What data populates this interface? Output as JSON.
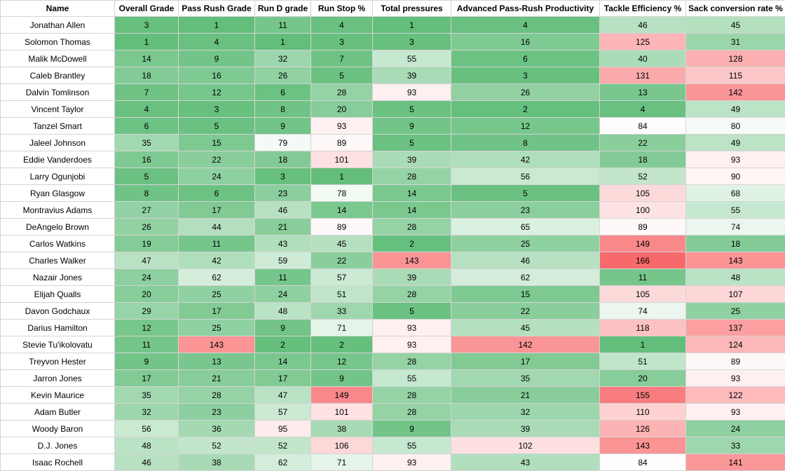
{
  "columns": [
    "Name",
    "Overall Grade",
    "Pass Rush Grade",
    "Run D grade",
    "Run Stop %",
    "Total pressures",
    "Advanced Pass-Rush Productivity",
    "Tackle Efficiency %",
    "Sack conversion rate %"
  ],
  "column_count_max": 166,
  "color_scale": {
    "good": "#63be7b",
    "mid": "#ffffff",
    "bad": "#f8696b",
    "midpoint": 85
  },
  "rows": [
    {
      "name": "Jonathan Allen",
      "values": [
        3,
        1,
        11,
        4,
        1,
        4,
        46,
        45
      ]
    },
    {
      "name": "Solomon Thomas",
      "values": [
        1,
        4,
        1,
        3,
        3,
        16,
        125,
        31
      ]
    },
    {
      "name": "Malik McDowell",
      "values": [
        14,
        9,
        32,
        7,
        55,
        6,
        40,
        128
      ]
    },
    {
      "name": "Caleb Brantley",
      "values": [
        18,
        16,
        26,
        5,
        39,
        3,
        131,
        115
      ]
    },
    {
      "name": "Dalvin Tomlinson",
      "values": [
        7,
        12,
        6,
        28,
        93,
        26,
        13,
        142
      ]
    },
    {
      "name": "Vincent Taylor",
      "values": [
        4,
        3,
        8,
        20,
        5,
        2,
        4,
        49
      ]
    },
    {
      "name": "Tanzel Smart",
      "values": [
        6,
        5,
        9,
        93,
        9,
        12,
        84,
        80
      ]
    },
    {
      "name": "Jaleel Johnson",
      "values": [
        35,
        15,
        79,
        89,
        5,
        8,
        22,
        49
      ]
    },
    {
      "name": "Eddie Vanderdoes",
      "values": [
        16,
        22,
        18,
        101,
        39,
        42,
        18,
        93
      ]
    },
    {
      "name": "Larry Ogunjobi",
      "values": [
        5,
        24,
        3,
        1,
        28,
        56,
        52,
        90
      ]
    },
    {
      "name": "Ryan Glasgow",
      "values": [
        8,
        6,
        23,
        78,
        14,
        5,
        105,
        68
      ]
    },
    {
      "name": "Montravius Adams",
      "values": [
        27,
        17,
        46,
        14,
        14,
        23,
        100,
        55
      ]
    },
    {
      "name": "DeAngelo Brown",
      "values": [
        26,
        44,
        21,
        89,
        28,
        65,
        89,
        74
      ]
    },
    {
      "name": "Carlos Watkins",
      "values": [
        19,
        11,
        43,
        45,
        2,
        25,
        149,
        18
      ]
    },
    {
      "name": "Charles Walker",
      "values": [
        47,
        42,
        59,
        22,
        143,
        46,
        166,
        143
      ]
    },
    {
      "name": "Nazair Jones",
      "values": [
        24,
        62,
        11,
        57,
        39,
        62,
        11,
        48
      ]
    },
    {
      "name": "Elijah Qualls",
      "values": [
        20,
        25,
        24,
        51,
        28,
        15,
        105,
        107
      ]
    },
    {
      "name": "Davon Godchaux",
      "values": [
        29,
        17,
        48,
        33,
        5,
        22,
        74,
        25
      ]
    },
    {
      "name": "Darius Hamilton",
      "values": [
        12,
        25,
        9,
        71,
        93,
        45,
        118,
        137
      ]
    },
    {
      "name": "Stevie Tu'ikolovatu",
      "values": [
        11,
        143,
        2,
        2,
        93,
        142,
        1,
        124
      ]
    },
    {
      "name": "Treyvon Hester",
      "values": [
        9,
        13,
        14,
        12,
        28,
        17,
        51,
        89
      ]
    },
    {
      "name": "Jarron Jones",
      "values": [
        17,
        21,
        17,
        9,
        55,
        35,
        20,
        93
      ]
    },
    {
      "name": "Kevin Maurice",
      "values": [
        35,
        28,
        47,
        149,
        28,
        21,
        155,
        122
      ]
    },
    {
      "name": "Adam Butler",
      "values": [
        32,
        23,
        57,
        101,
        28,
        32,
        110,
        93
      ]
    },
    {
      "name": "Woody Baron",
      "values": [
        56,
        36,
        95,
        38,
        9,
        39,
        126,
        24
      ]
    },
    {
      "name": "D.J. Jones",
      "values": [
        48,
        52,
        52,
        106,
        55,
        102,
        143,
        33
      ]
    },
    {
      "name": "Isaac Rochell",
      "values": [
        46,
        38,
        62,
        71,
        93,
        43,
        84,
        141
      ]
    }
  ]
}
